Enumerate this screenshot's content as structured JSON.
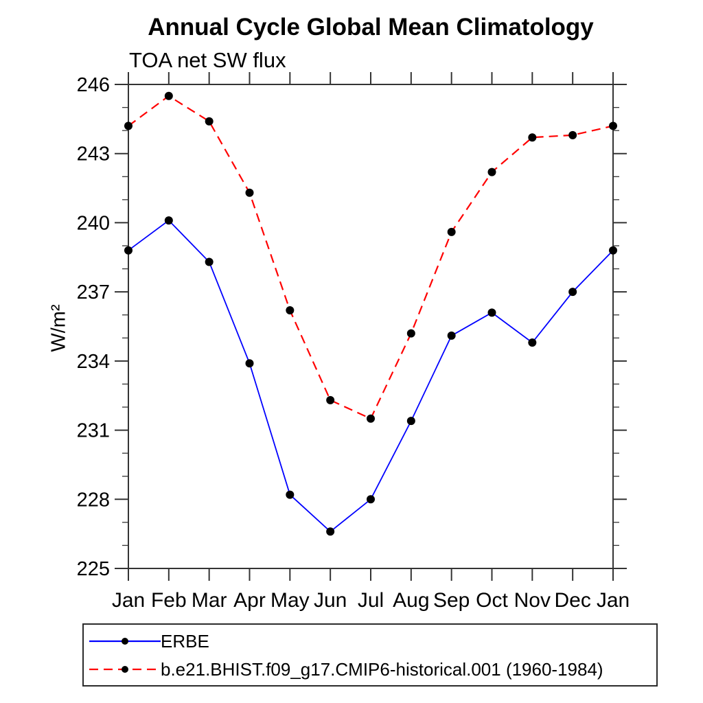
{
  "header": {
    "title": "Annual Cycle Global Mean Climatology",
    "subtitle": "TOA net SW flux"
  },
  "chart_data": {
    "type": "line",
    "title": "Annual Cycle Global Mean Climatology",
    "subtitle": "TOA net SW flux",
    "ylabel": "W/m²",
    "xlabel": "",
    "categories": [
      "Jan",
      "Feb",
      "Mar",
      "Apr",
      "May",
      "Jun",
      "Jul",
      "Aug",
      "Sep",
      "Oct",
      "Nov",
      "Dec",
      "Jan"
    ],
    "ylim": [
      225,
      246
    ],
    "ytick_major_step": 3,
    "ytick_minor_step": 1,
    "ytick_labels": [
      "225",
      "228",
      "231",
      "234",
      "237",
      "240",
      "243",
      "246"
    ],
    "grid": false,
    "legend_position": "bottom-left-box",
    "axis_color": "#333333",
    "marker_color": "#000000",
    "series": [
      {
        "name": "ERBE",
        "color": "#0000ff",
        "line_style": "solid",
        "marker": "circle",
        "values": [
          238.8,
          240.1,
          238.3,
          233.9,
          228.2,
          226.6,
          228.0,
          231.4,
          235.1,
          236.1,
          234.8,
          237.0,
          238.8
        ]
      },
      {
        "name": "b.e21.BHIST.f09_g17.CMIP6-historical.001 (1960-1984)",
        "color": "#ff0000",
        "line_style": "dashed",
        "marker": "circle",
        "values": [
          244.2,
          245.5,
          244.4,
          241.3,
          236.2,
          232.3,
          231.5,
          235.2,
          239.6,
          242.2,
          243.7,
          243.8,
          244.2
        ]
      }
    ]
  },
  "legend": {
    "entries": [
      {
        "label": "ERBE",
        "color": "#0000ff",
        "line_style": "solid",
        "marker": "circle"
      },
      {
        "label": "b.e21.BHIST.f09_g17.CMIP6-historical.001 (1960-1984)",
        "color": "#ff0000",
        "line_style": "dashed",
        "marker": "circle"
      }
    ]
  }
}
